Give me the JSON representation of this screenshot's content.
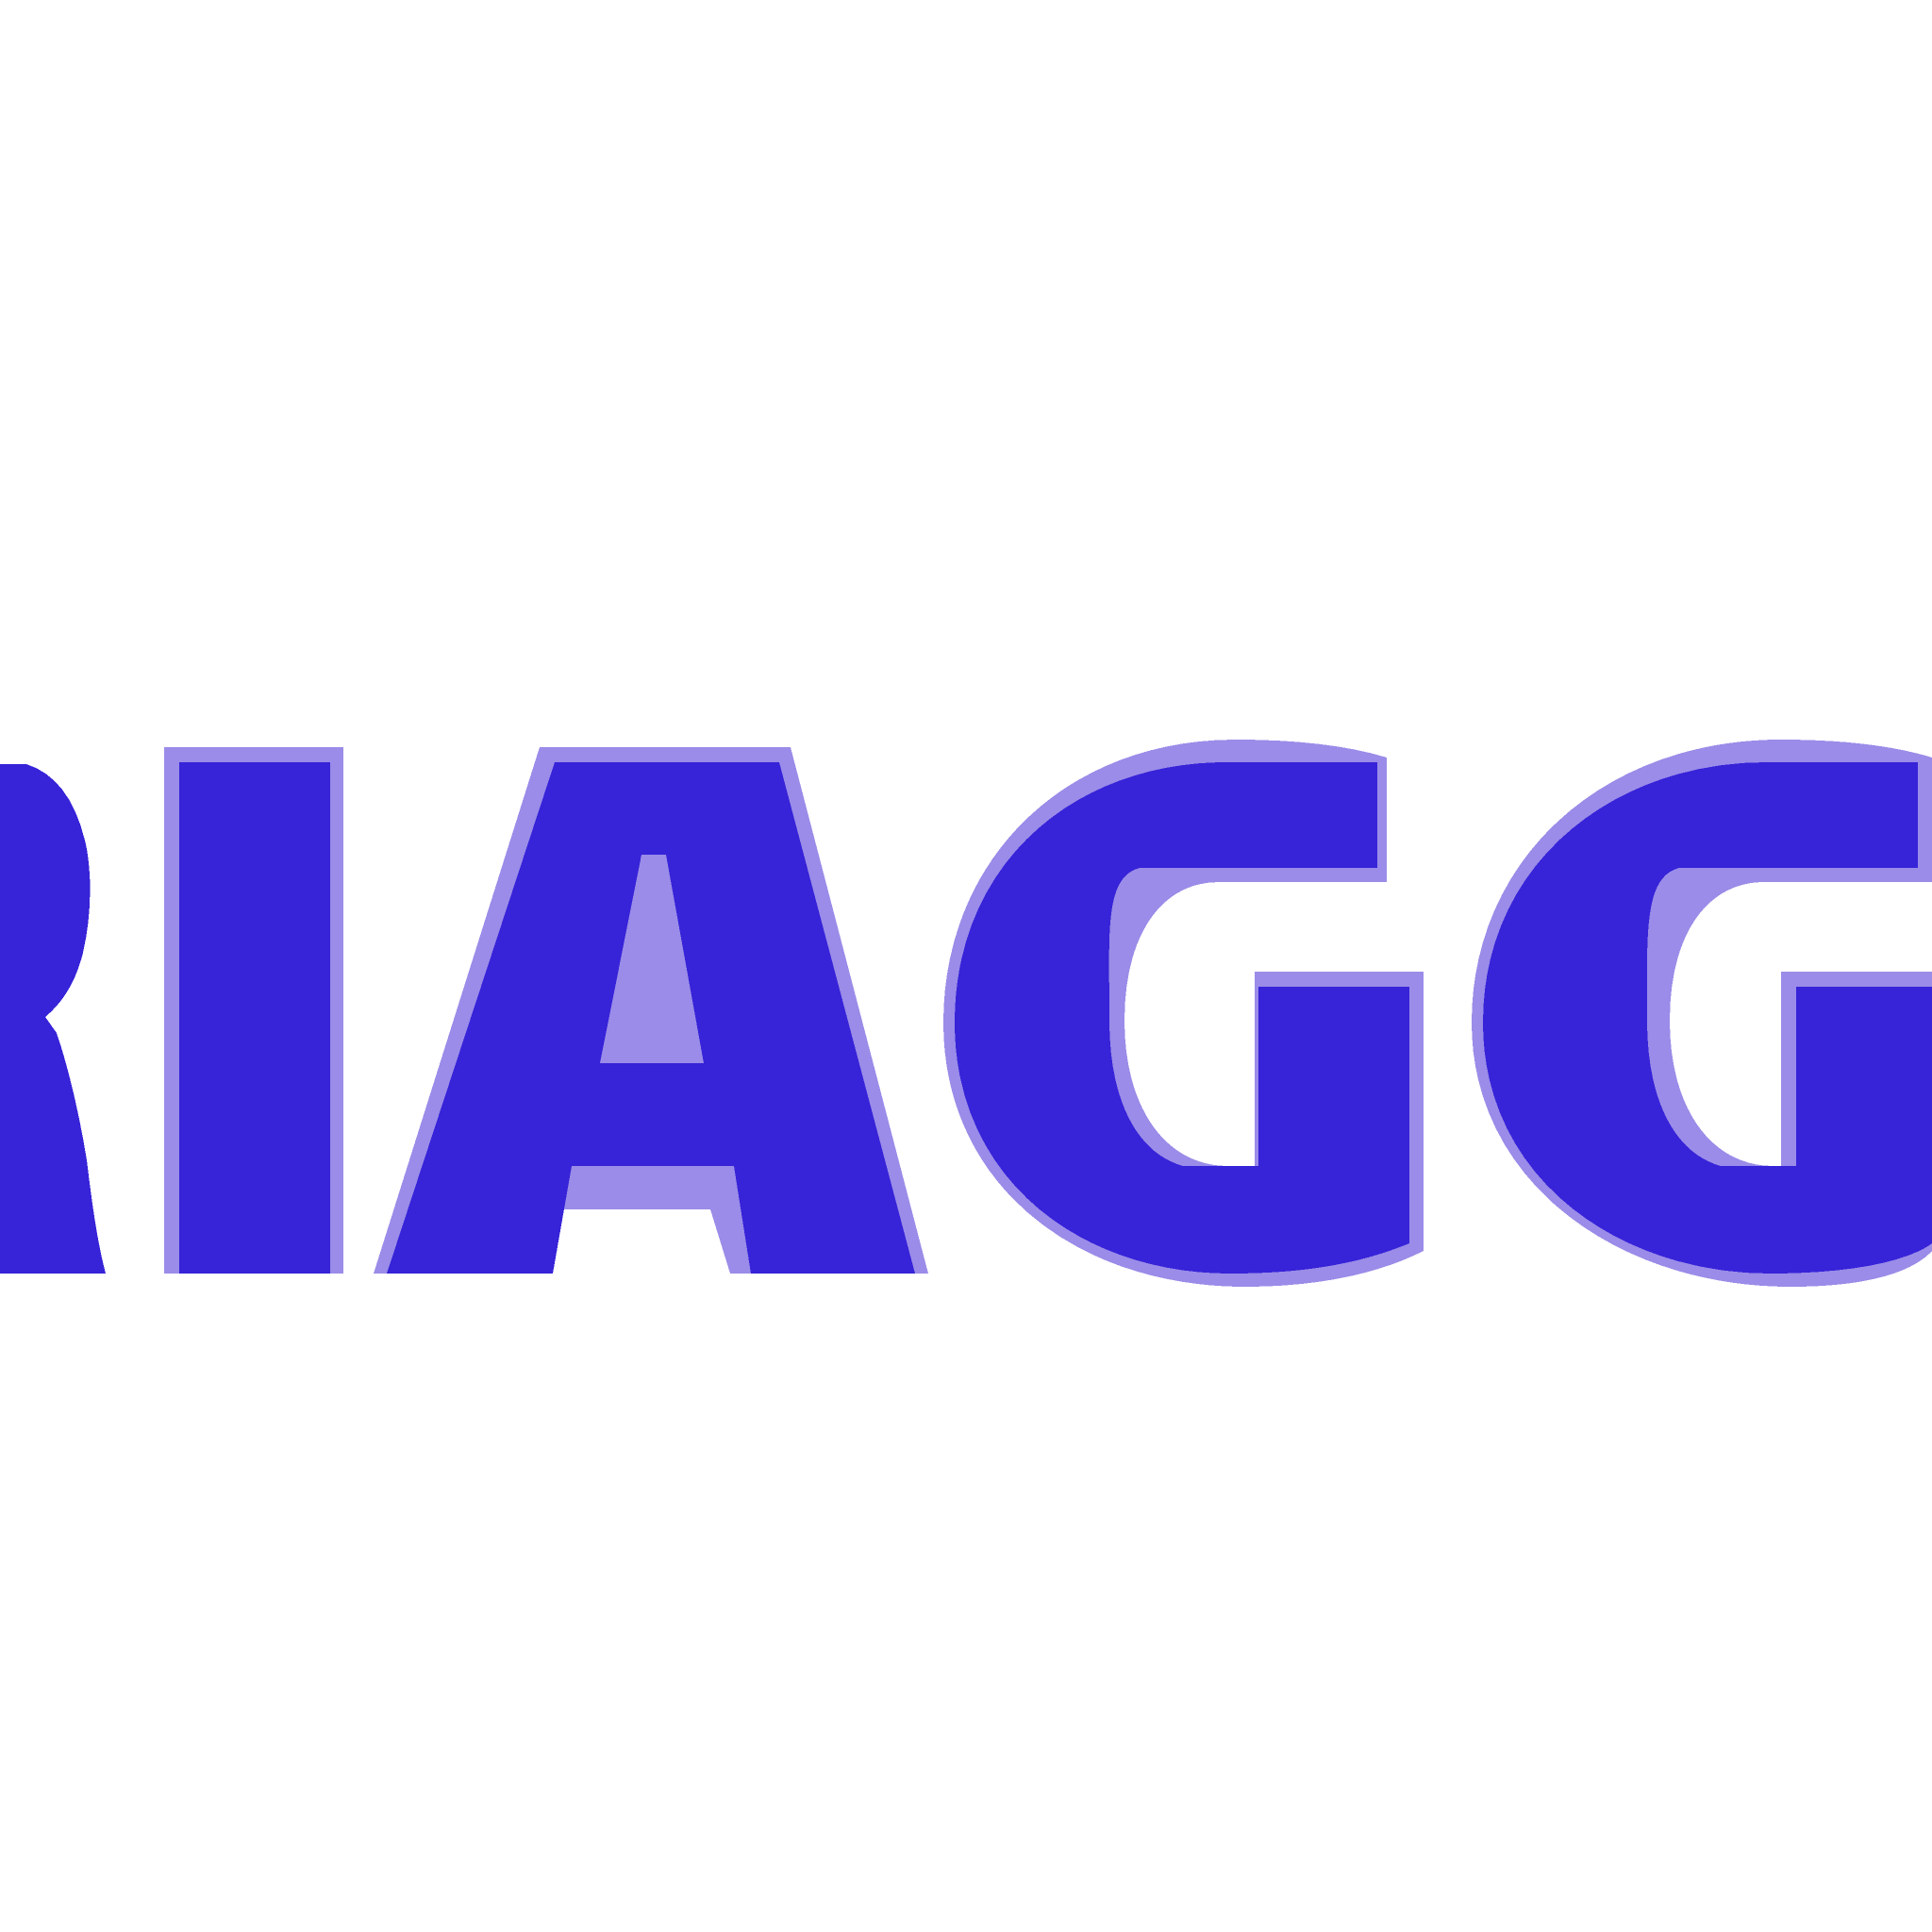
{
  "logo": {
    "wordmark": "RIAGG",
    "color": "#3723D8",
    "halo_color": "#9A8CE8"
  }
}
